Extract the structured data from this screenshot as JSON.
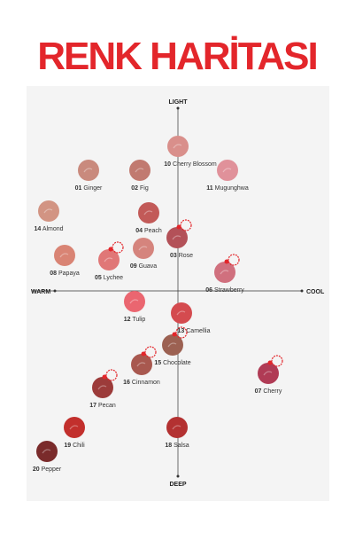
{
  "title": "RENK HARİTASI",
  "axes": {
    "top": "LIGHT",
    "bottom": "DEEP",
    "left": "WARM",
    "right": "COOL"
  },
  "swatches": [
    {
      "number": "01",
      "name": "Ginger",
      "color": "#c98a7d"
    },
    {
      "number": "02",
      "name": "Fig",
      "color": "#c17a70"
    },
    {
      "number": "10",
      "name": "Cherry Blossom",
      "color": "#d98f8b"
    },
    {
      "number": "11",
      "name": "Mugunghwa",
      "color": "#e0919a"
    },
    {
      "number": "14",
      "name": "Almond",
      "color": "#d29483"
    },
    {
      "number": "04",
      "name": "Peach",
      "color": "#c25a58"
    },
    {
      "number": "03",
      "name": "Rose",
      "color": "#b35158"
    },
    {
      "number": "08",
      "name": "Papaya",
      "color": "#d98474"
    },
    {
      "number": "05",
      "name": "Lychee",
      "color": "#e07777"
    },
    {
      "number": "09",
      "name": "Guava",
      "color": "#d5847d"
    },
    {
      "number": "06",
      "name": "Strawberry",
      "color": "#d0707e"
    },
    {
      "number": "12",
      "name": "Tulip",
      "color": "#ea6670"
    },
    {
      "number": "13",
      "name": "Camellia",
      "color": "#d44b4f"
    },
    {
      "number": "15",
      "name": "Chocolate",
      "color": "#9c6152"
    },
    {
      "number": "16",
      "name": "Cinnamon",
      "color": "#a8584f"
    },
    {
      "number": "07",
      "name": "Cherry",
      "color": "#b03b55"
    },
    {
      "number": "17",
      "name": "Pecan",
      "color": "#9c3b3a"
    },
    {
      "number": "19",
      "name": "Chili",
      "color": "#c22f2c"
    },
    {
      "number": "18",
      "name": "Salsa",
      "color": "#b33131"
    },
    {
      "number": "20",
      "name": "Pepper",
      "color": "#7a2b2b"
    }
  ]
}
